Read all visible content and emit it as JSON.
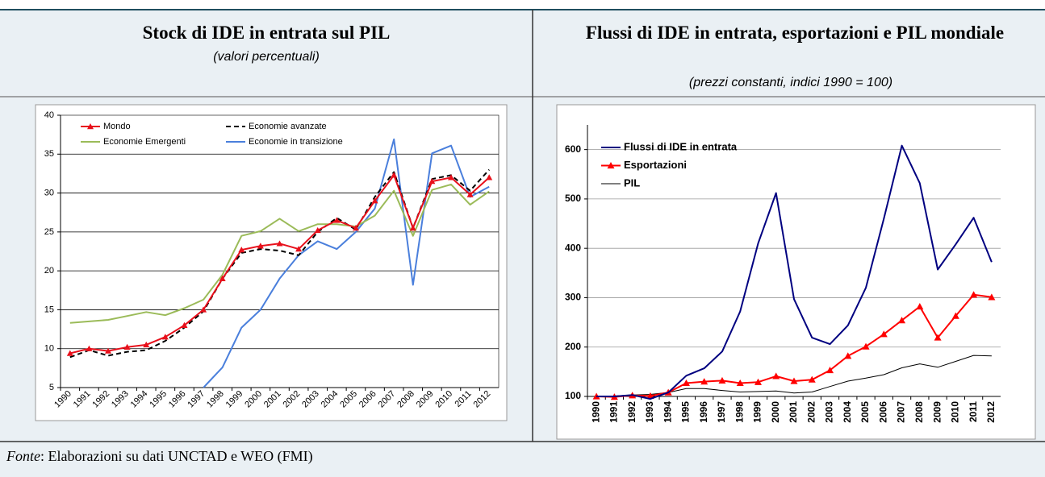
{
  "chart_data": [
    {
      "type": "line",
      "title": "Stock di IDE in entrata sul PIL",
      "subtitle": "(valori percentuali)",
      "categories": [
        "1990",
        "1991",
        "1992",
        "1993",
        "1994",
        "1995",
        "1996",
        "1997",
        "1998",
        "1999",
        "2000",
        "2001",
        "2002",
        "2003",
        "2004",
        "2005",
        "2006",
        "2007",
        "2008",
        "2009",
        "2010",
        "2011",
        "2012"
      ],
      "ylim": [
        5,
        40
      ],
      "yticks": [
        5,
        10,
        15,
        20,
        25,
        30,
        35,
        40
      ],
      "grid": true,
      "legend": "top-left",
      "series": [
        {
          "name": "Mondo",
          "color": "#e8101b",
          "marker": "triangle",
          "values": [
            9.4,
            10.0,
            9.7,
            10.2,
            10.5,
            11.5,
            13.0,
            15.0,
            19.0,
            22.7,
            23.2,
            23.5,
            22.8,
            25.2,
            26.5,
            25.5,
            29.0,
            32.3,
            25.5,
            31.5,
            32.0,
            29.8,
            32.0
          ]
        },
        {
          "name": "Economie Emergenti",
          "color": "#9bbb59",
          "values": [
            13.3,
            13.5,
            13.7,
            14.2,
            14.7,
            14.3,
            15.2,
            16.3,
            19.5,
            24.5,
            25.1,
            26.7,
            25.1,
            26.0,
            26.0,
            25.7,
            27.1,
            30.3,
            24.5,
            30.4,
            31.1,
            28.5,
            30.2
          ]
        },
        {
          "name": "Economie avanzate",
          "color": "#000000",
          "dash": "6,4",
          "values": [
            8.9,
            9.8,
            9.1,
            9.6,
            9.8,
            11.0,
            12.7,
            14.8,
            19.0,
            22.3,
            22.8,
            22.6,
            22.0,
            25.0,
            26.8,
            25.3,
            29.5,
            32.7,
            25.5,
            31.8,
            32.3,
            30.3,
            33.0
          ]
        },
        {
          "name": "Economie in transizione",
          "color": "#4a7fdc",
          "values": [
            null,
            null,
            null,
            null,
            null,
            null,
            null,
            5.0,
            7.6,
            12.7,
            15.0,
            19.0,
            22.0,
            23.8,
            22.8,
            25.0,
            28.0,
            36.9,
            18.2,
            35.1,
            36.1,
            29.5,
            30.8
          ]
        }
      ]
    },
    {
      "type": "line",
      "title": "Flussi di IDE in entrata, esportazioni e PIL mondiale",
      "subtitle": "(prezzi constanti, indici 1990 = 100)",
      "categories": [
        "1990",
        "1991",
        "1992",
        "1993",
        "1994",
        "1995",
        "1996",
        "1997",
        "1998",
        "1999",
        "2000",
        "2001",
        "2002",
        "2003",
        "2004",
        "2005",
        "2006",
        "2007",
        "2008",
        "2009",
        "2010",
        "2011",
        "2012"
      ],
      "ylim": [
        100,
        650
      ],
      "yticks": [
        100,
        200,
        300,
        400,
        500,
        600
      ],
      "grid": true,
      "legend": "top-left",
      "series": [
        {
          "name": "Flussi di IDE in entrata",
          "color": "#000080",
          "values": [
            100,
            100,
            103,
            95,
            108,
            142,
            157,
            191,
            272,
            410,
            512,
            297,
            219,
            206,
            244,
            320,
            460,
            608,
            532,
            357,
            408,
            462,
            372
          ]
        },
        {
          "name": "Esportazioni",
          "color": "#ff0000",
          "marker": "triangle",
          "values": [
            100,
            99,
            102,
            101,
            108,
            127,
            130,
            132,
            127,
            129,
            141,
            131,
            134,
            153,
            182,
            201,
            226,
            254,
            282,
            219,
            263,
            306,
            301
          ]
        },
        {
          "name": "PIL",
          "color": "#000000",
          "thin": true,
          "values": [
            100,
            101,
            103,
            104,
            108,
            116,
            116,
            112,
            109,
            110,
            111,
            107,
            109,
            120,
            131,
            137,
            144,
            158,
            166,
            159,
            171,
            183,
            182
          ]
        }
      ]
    }
  ],
  "source": {
    "label": "Fonte",
    "text": ": Elaborazioni su dati UNCTAD e WEO (FMI)"
  }
}
